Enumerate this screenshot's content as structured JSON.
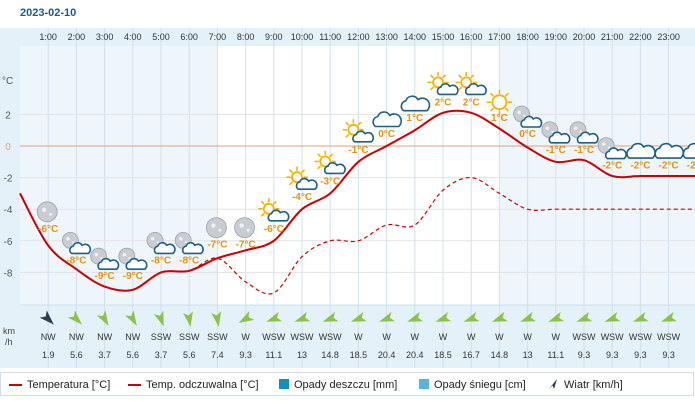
{
  "date": "2023-02-10",
  "colors": {
    "temperature": "#cc0000",
    "feels_like": "#cc0000",
    "rain": "#168dbe",
    "snow": "#5ab3d8",
    "wind_arrow_a": "#8bc34a",
    "wind_arrow_b": "#2c3e50",
    "temp_label": "#e8920f",
    "zero_line": "#e6a07a"
  },
  "units": {
    "temp": "°C",
    "wind_top": "km",
    "wind_bottom": "/h"
  },
  "legend": {
    "temperature": "Temperatura [°C]",
    "feels_like": "Temp. odczuwalna [°C]",
    "rain": "Opady deszczu [mm]",
    "snow": "Opady śniegu [cm]",
    "wind": "Wiatr [km/h]"
  },
  "chart_data": {
    "type": "line",
    "hours": [
      "1:00",
      "2:00",
      "3:00",
      "4:00",
      "5:00",
      "6:00",
      "7:00",
      "8:00",
      "9:00",
      "10:00",
      "11:00",
      "12:00",
      "13:00",
      "14:00",
      "15:00",
      "16:00",
      "17:00",
      "18:00",
      "19:00",
      "20:00",
      "21:00",
      "22:00",
      "23:00"
    ],
    "y_ticks": [
      "2",
      "0",
      "-2",
      "-4",
      "-6",
      "-8"
    ],
    "ylim": [
      -10,
      4
    ],
    "grid": true,
    "series": [
      {
        "name": "Temperatura [°C]",
        "style": "solid",
        "x": [
          0,
          1,
          2,
          3,
          4,
          5,
          6,
          7,
          8,
          9,
          10,
          11,
          12,
          13,
          14,
          15,
          16,
          17,
          18,
          19,
          20,
          21,
          22,
          23,
          24
        ],
        "y": [
          -3,
          -6.3,
          -7.8,
          -8.9,
          -9.1,
          -8,
          -7.9,
          -7.1,
          -6.6,
          -6,
          -4,
          -3,
          -1,
          0,
          1,
          2.1,
          2.1,
          1.1,
          -0.1,
          -1,
          -0.9,
          -1.9,
          -1.9,
          -1.9,
          -1.9
        ]
      },
      {
        "name": "Temp. odczuwalna [°C]",
        "style": "dashed",
        "x": [
          0,
          1,
          2,
          3,
          4,
          5,
          6,
          7,
          8,
          9,
          10,
          11,
          12,
          13,
          14,
          15,
          16,
          17,
          18,
          19,
          20,
          21,
          22,
          23,
          24
        ],
        "y": [
          -3,
          -6.3,
          -7.8,
          -8.9,
          -9.1,
          -8,
          -7.9,
          -7.1,
          -8.6,
          -9.3,
          -7,
          -6,
          -6,
          -5,
          -5,
          -2.8,
          -2,
          -3,
          -4,
          -4,
          -4,
          -4,
          -4,
          -4,
          -4
        ]
      }
    ],
    "icon_labels": [
      "-6°C",
      "-8°C",
      "-9°C",
      "-9°C",
      "-8°C",
      "-8°C",
      "-7°C",
      "-7°C",
      "-6°C",
      "-4°C",
      "-3°C",
      "-1°C",
      "0°C",
      "1°C",
      "2°C",
      "2°C",
      "1°C",
      "0°C",
      "-1°C",
      "-1°C",
      "-2°C",
      "-2°C",
      "-2°C",
      "-2°C"
    ],
    "icon_types": [
      "moon",
      "moon-cloud",
      "moon-cloud",
      "moon-cloud",
      "moon-cloud",
      "moon-cloud",
      "moon",
      "moon",
      "sun-cloud",
      "sun-cloud",
      "sun-cloud",
      "sun-cloud",
      "cloud",
      "cloud",
      "sun-cloud",
      "sun-cloud",
      "sun",
      "moon-cloud",
      "moon-cloud",
      "moon-cloud",
      "moon-cloud",
      "cloud",
      "cloud",
      "cloud"
    ],
    "icon_temps": [
      -6,
      -8,
      -9,
      -9,
      -8,
      -8,
      -7,
      -7,
      -6,
      -4,
      -3,
      -1,
      0,
      1,
      2,
      2,
      1,
      0,
      -1,
      -1,
      -2,
      -2,
      -2,
      -2
    ],
    "wind_dir": [
      "NW",
      "NW",
      "NW",
      "NW",
      "SSW",
      "SSW",
      "SSW",
      "W",
      "WSW",
      "WSW",
      "WSW",
      "W",
      "W",
      "W",
      "W",
      "W",
      "W",
      "W",
      "W",
      "WSW",
      "WSW",
      "WSW",
      "WSW"
    ],
    "wind_speed": [
      "1.9",
      "5.6",
      "3.7",
      "5.6",
      "3.7",
      "5.6",
      "7.4",
      "9.3",
      "11.1",
      "13",
      "14.8",
      "18.5",
      "20.4",
      "20.4",
      "18.5",
      "16.7",
      "14.8",
      "13",
      "11.1",
      "9.3",
      "9.3",
      "9.3",
      "9.3"
    ],
    "wind_arrow_angle": [
      135,
      135,
      150,
      150,
      160,
      170,
      170,
      240,
      250,
      250,
      250,
      250,
      250,
      250,
      250,
      250,
      250,
      250,
      250,
      250,
      250,
      250,
      250
    ],
    "wind_arrow_color": [
      "b",
      "a",
      "a",
      "a",
      "a",
      "a",
      "a",
      "a",
      "a",
      "a",
      "a",
      "a",
      "a",
      "a",
      "a",
      "a",
      "a",
      "a",
      "a",
      "a",
      "a",
      "a",
      "a"
    ]
  }
}
